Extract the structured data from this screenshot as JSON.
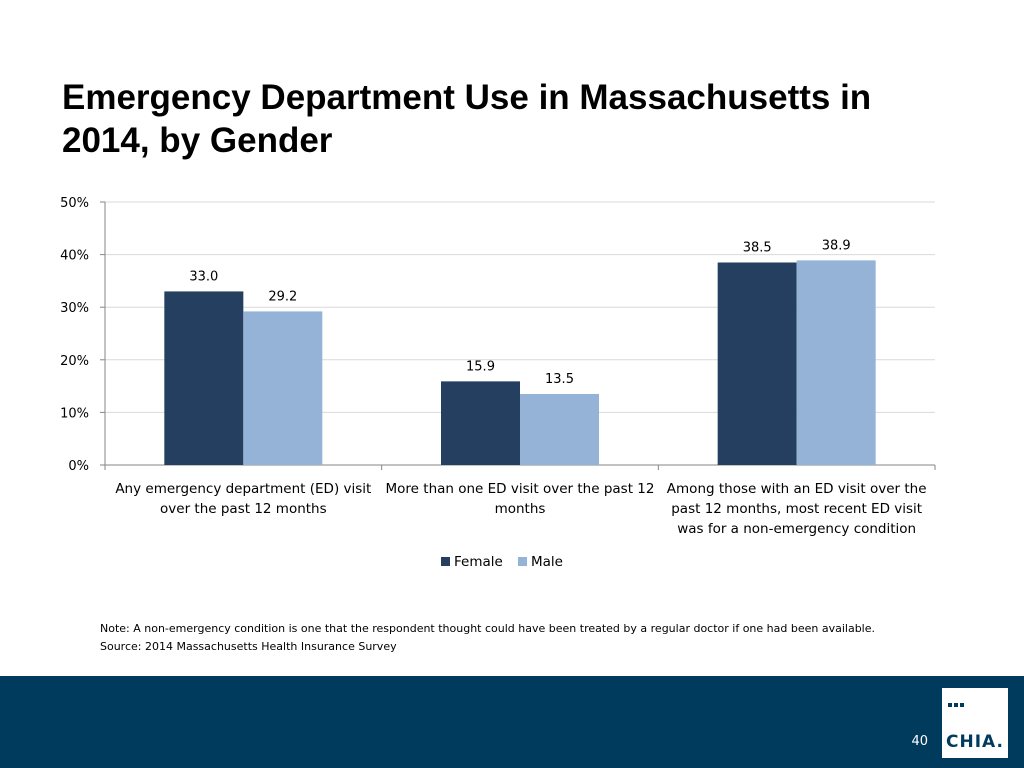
{
  "title": "Emergency Department Use in Massachusetts in 2014, by Gender",
  "note_lines": [
    "Note: A non-emergency condition is one that the respondent thought could have been treated by a regular doctor if one had been available.",
    "Source:  2014 Massachusetts Health Insurance Survey"
  ],
  "page_number": "40",
  "logo_text": "CHIA.",
  "colors": {
    "female": "#243f60",
    "male": "#95b3d7",
    "footer": "#003a5d"
  },
  "chart_data": {
    "type": "bar",
    "title": "",
    "categories": [
      [
        "Any emergency department (ED) visit",
        "over the past 12 months"
      ],
      [
        "More than one ED visit over the past 12",
        "months"
      ],
      [
        "Among those with an ED visit over the",
        "past 12 months, most recent ED visit",
        "was for a non-emergency condition"
      ]
    ],
    "series": [
      {
        "name": "Female",
        "values": [
          33.0,
          15.9,
          38.5
        ],
        "labels": [
          "33.0",
          "15.9",
          "38.5"
        ]
      },
      {
        "name": "Male",
        "values": [
          29.2,
          13.5,
          38.9
        ],
        "labels": [
          "29.2",
          "13.5",
          "38.9"
        ]
      }
    ],
    "yticks": [
      0,
      10,
      20,
      30,
      40,
      50
    ],
    "ytick_labels": [
      "0%",
      "10%",
      "20%",
      "30%",
      "40%",
      "50%"
    ],
    "ylim": [
      0,
      50
    ],
    "grid": true,
    "legend": "bottom",
    "xlabel": "",
    "ylabel": ""
  }
}
